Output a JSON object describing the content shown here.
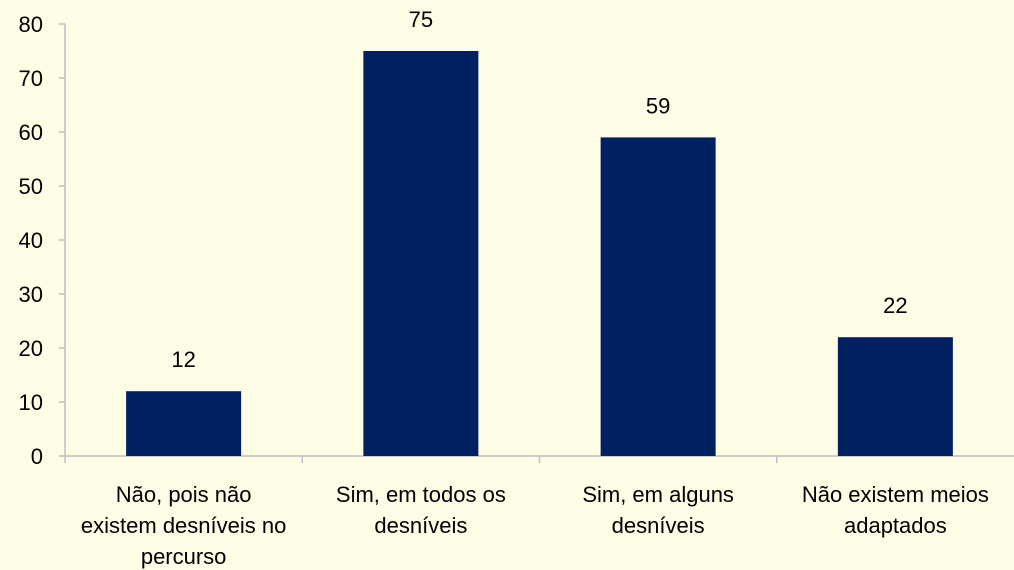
{
  "chart_data": {
    "type": "bar",
    "categories": [
      [
        "Não, pois não",
        "existem desníveis no",
        "percurso"
      ],
      [
        "Sim, em todos os",
        "desníveis"
      ],
      [
        "Sim, em alguns",
        "desníveis"
      ],
      [
        "Não existem meios",
        "adaptados"
      ]
    ],
    "values": [
      12,
      75,
      59,
      22
    ],
    "data_labels": [
      "12",
      "75",
      "59",
      "22"
    ],
    "title": "",
    "xlabel": "",
    "ylabel": "",
    "ylim": [
      0,
      80
    ],
    "yticks": [
      0,
      10,
      20,
      30,
      40,
      50,
      60,
      70,
      80
    ],
    "grid": false,
    "legend": "none",
    "colors": {
      "bar": "#002060",
      "axis": "#bfbfbf",
      "background": "#fdfde6",
      "text": "#000000"
    }
  }
}
